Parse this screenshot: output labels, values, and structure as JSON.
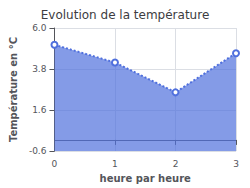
{
  "chart_data": {
    "type": "area",
    "title": "Evolution de la température",
    "xlabel": "heure par heure",
    "ylabel": "Température en °C",
    "x": [
      0,
      1,
      2,
      3
    ],
    "values": [
      5.1,
      4.15,
      2.55,
      4.65
    ],
    "xlim": [
      0,
      3
    ],
    "ylim": [
      -0.6,
      6.0
    ],
    "xticks": [
      0,
      1,
      2,
      3
    ],
    "yticks": [
      -0.6,
      1.6,
      3.8,
      {
        "value": 6.0,
        "label": "6.0"
      }
    ],
    "line_style": "dotted",
    "grid": true
  }
}
